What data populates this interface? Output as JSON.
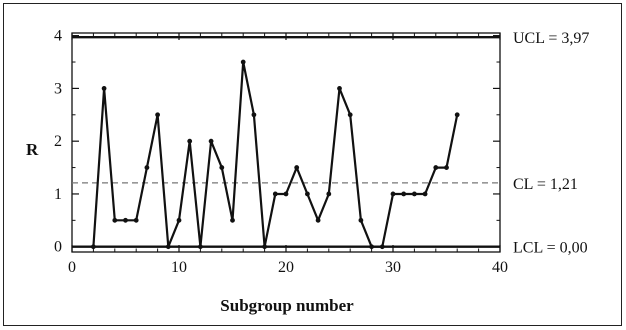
{
  "chart_data": {
    "type": "line",
    "title": "",
    "xlabel": "Subgroup number",
    "ylabel": "R",
    "xlim": [
      0,
      40
    ],
    "ylim": [
      -0.1,
      4.05
    ],
    "xticks": [
      0,
      10,
      20,
      30,
      40
    ],
    "yticks": [
      0,
      1,
      2,
      3,
      4
    ],
    "x_tick_labels": [
      "0",
      "10",
      "20",
      "30",
      "40"
    ],
    "y_tick_labels": [
      "0",
      "1",
      "2",
      "3",
      "4"
    ],
    "series": [
      {
        "x": [
          2,
          3,
          4,
          5,
          6,
          7,
          8,
          9,
          10,
          11,
          12,
          13,
          14,
          15,
          16,
          17,
          18,
          19,
          20,
          21,
          22,
          23,
          24,
          25,
          26,
          27,
          28,
          29,
          30,
          31,
          32,
          33,
          34,
          35,
          36
        ],
        "values": [
          0,
          3,
          0.5,
          0.5,
          0.5,
          1.5,
          2.5,
          0,
          0.5,
          2,
          0,
          2,
          1.5,
          0.5,
          3.5,
          2.5,
          0,
          1,
          1,
          1.5,
          1,
          0.5,
          1,
          3,
          2.5,
          0.5,
          0,
          0,
          1,
          1,
          1,
          1,
          1.5,
          1.5,
          2.5
        ]
      }
    ],
    "control_limits": [
      {
        "key": "ucl",
        "label": "UCL = 3,97",
        "value": 3.97,
        "style": "solid"
      },
      {
        "key": "cl",
        "label": "CL = 1,21",
        "value": 1.21,
        "style": "dashed"
      },
      {
        "key": "lcl",
        "label": "LCL = 0,00",
        "value": 0.0,
        "style": "solid"
      }
    ],
    "grid": false
  }
}
